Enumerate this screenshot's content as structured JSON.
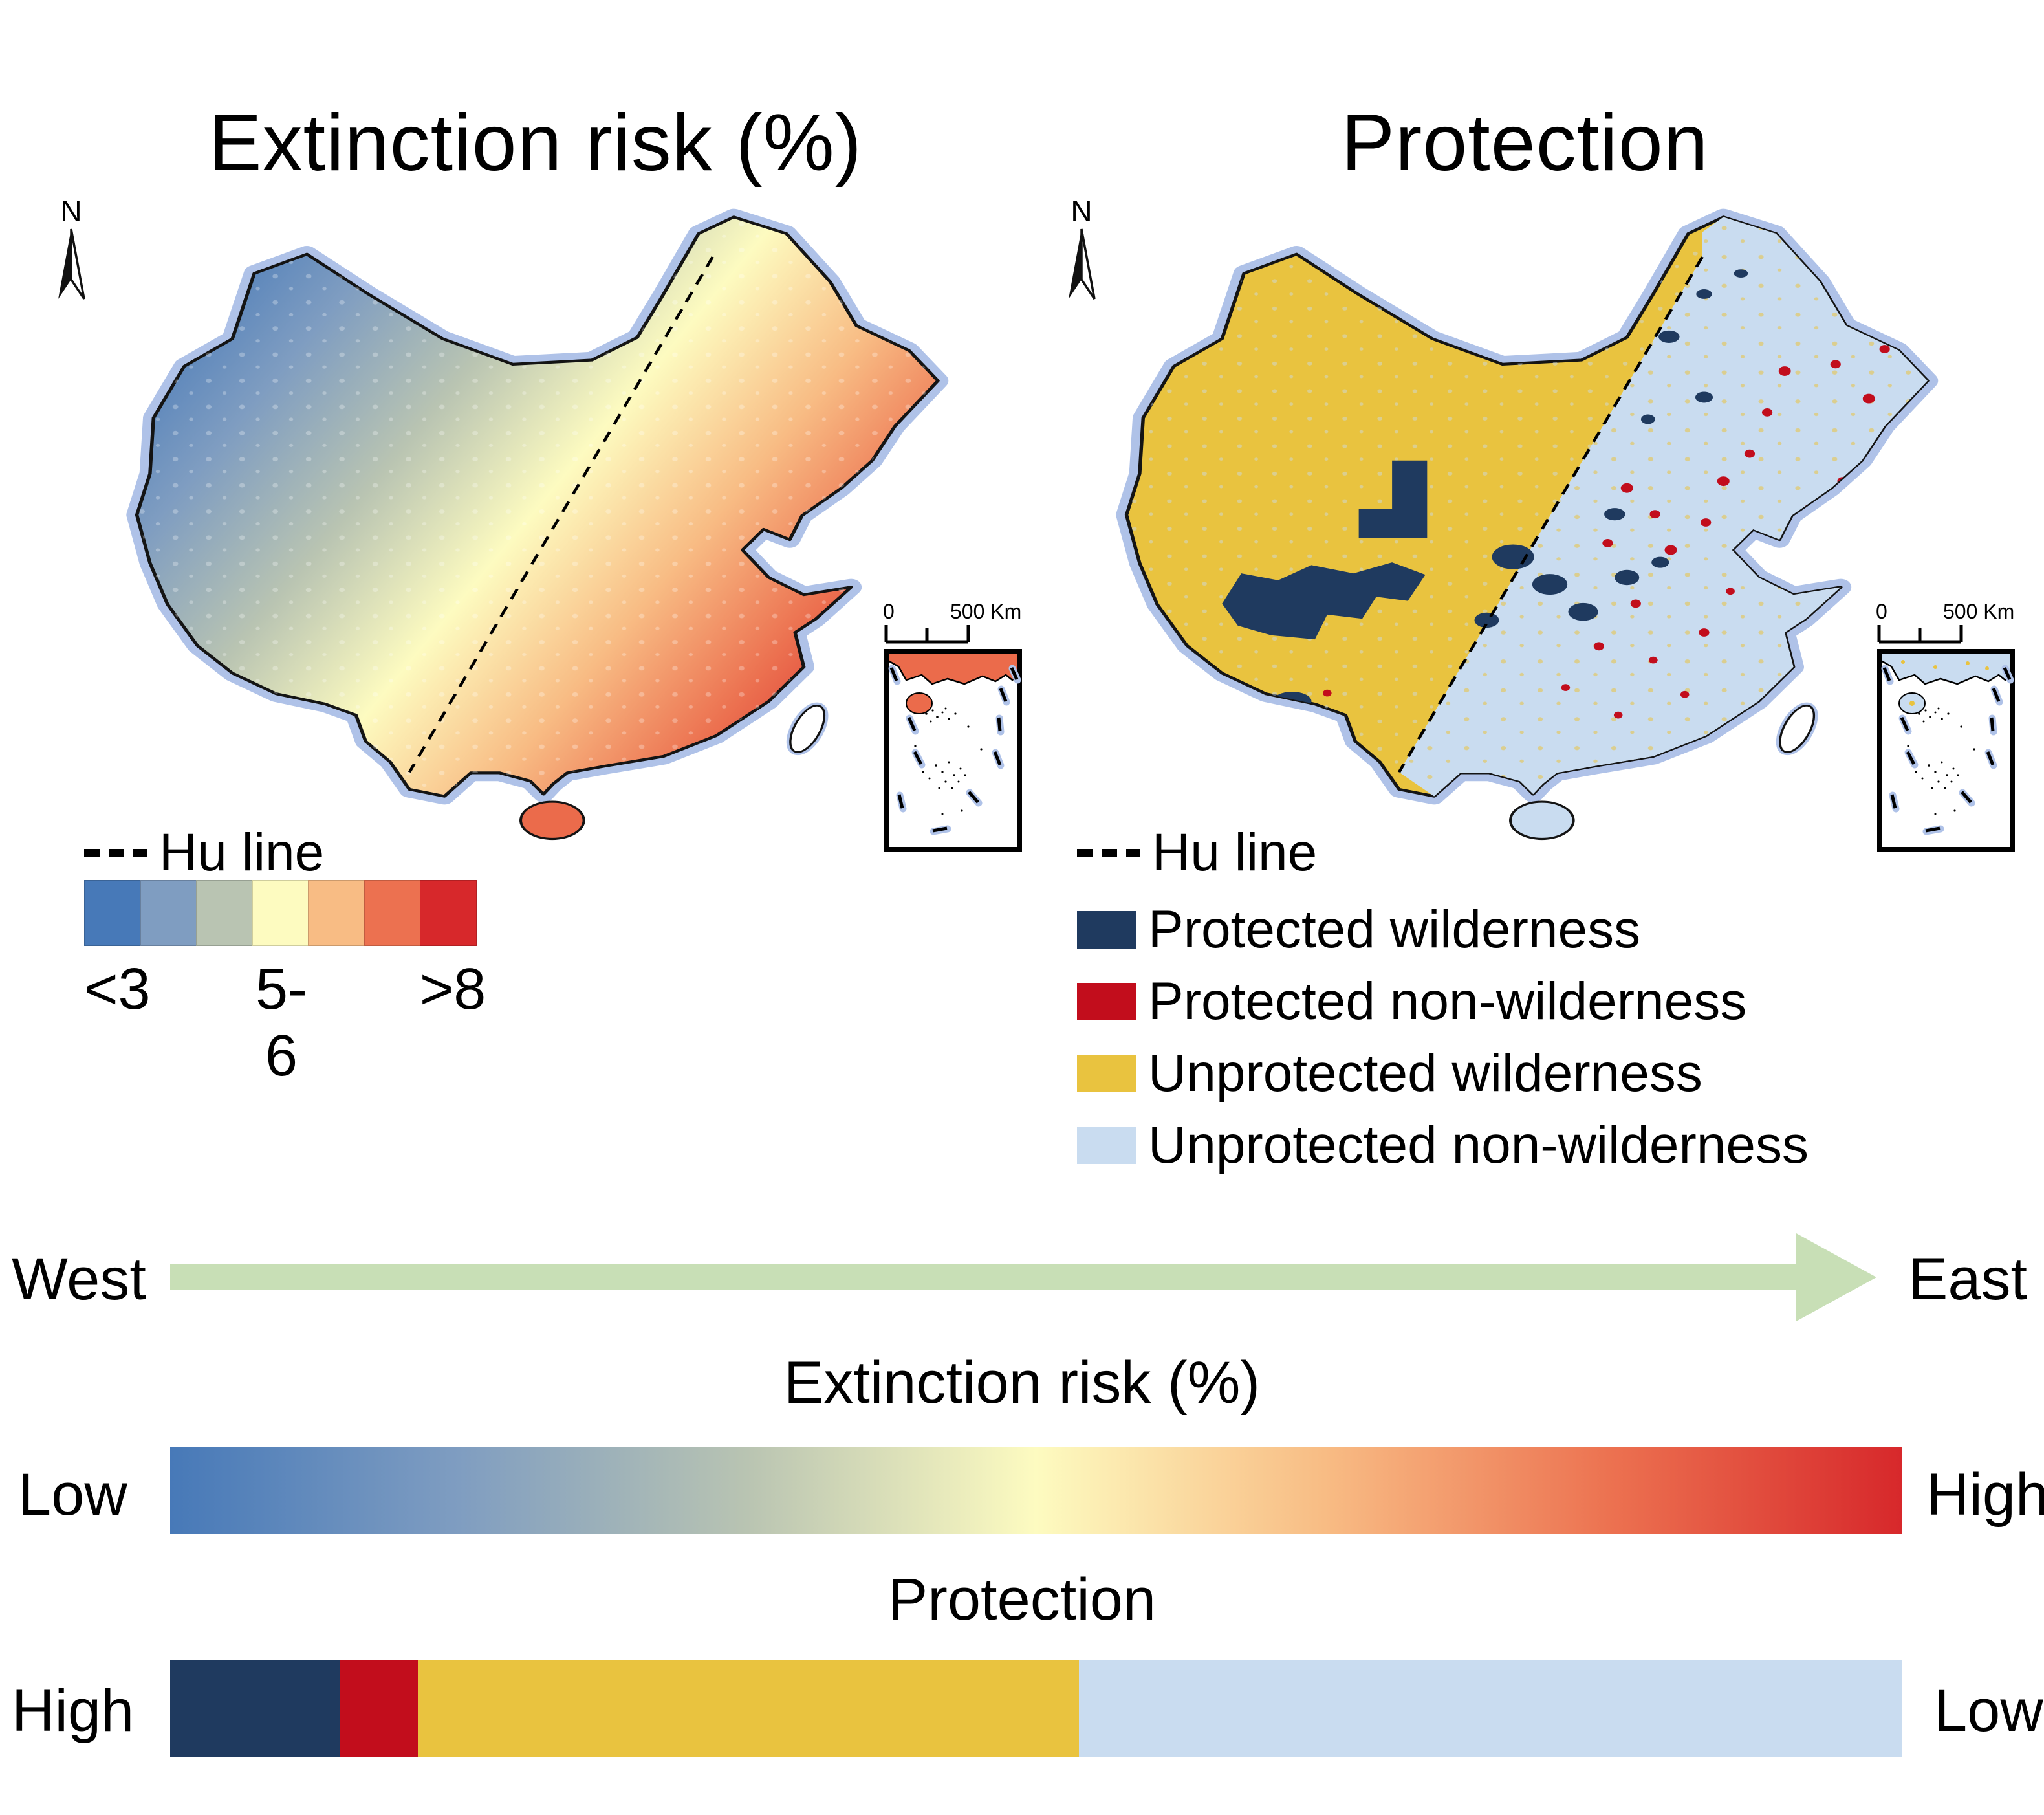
{
  "colors": {
    "halo": "#AFC2E8",
    "outline": "#141414",
    "navy": "#1F3A5F",
    "red": "#C20D1C",
    "yellow": "#E9C33F",
    "lightblue": "#C9DCF0",
    "arrow_green": "#C8DFB6",
    "inset_coast_risk": "#EB6B4B",
    "map_white": "#FFFFFF"
  },
  "panels": {
    "risk": {
      "title": "Extinction risk (%)",
      "compass": "N",
      "scalebar_zero": "0",
      "scalebar_label": "500 Km"
    },
    "protection": {
      "title": "Protection",
      "compass": "N",
      "scalebar_zero": "0",
      "scalebar_label": "500 Km"
    }
  },
  "risk_legend": {
    "hu_line_label": "Hu line",
    "ramp_colors": [
      "#4779B8",
      "#7F9DC1",
      "#B9C4B2",
      "#FDFBC0",
      "#F8BC84",
      "#EC7150",
      "#D7282B"
    ],
    "tick_labels": [
      "<3",
      "5-6",
      ">8"
    ]
  },
  "protection_legend": {
    "hu_line_label": "Hu line",
    "items": [
      {
        "label": "Protected wilderness",
        "color": "#1F3A5F"
      },
      {
        "label": "Protected non-wilderness",
        "color": "#C20D1C"
      },
      {
        "label": "Unprotected wilderness",
        "color": "#E9C33F"
      },
      {
        "label": "Unprotected non-wilderness",
        "color": "#C9DCF0"
      }
    ]
  },
  "summary": {
    "direction_left": "West",
    "direction_right": "East",
    "risk_bar": {
      "title": "Extinction risk (%)",
      "left_label": "Low",
      "right_label": "High",
      "gradient_colors": [
        "#4779B8",
        "#7F9DC1",
        "#B9C4B2",
        "#FDFBC0",
        "#F8BC84",
        "#EC7150",
        "#D7282B"
      ]
    },
    "protection_bar": {
      "title": "Protection",
      "left_label": "High",
      "right_label": "Low",
      "segments": [
        {
          "name": "Protected wilderness",
          "color": "#1F3A5F",
          "fraction": 0.098
        },
        {
          "name": "Protected non-wilderness",
          "color": "#C20D1C",
          "fraction": 0.045
        },
        {
          "name": "Unprotected wilderness",
          "color": "#E9C33F",
          "fraction": 0.382
        },
        {
          "name": "Unprotected non-wilderness",
          "color": "#C9DCF0",
          "fraction": 0.475
        }
      ]
    }
  }
}
